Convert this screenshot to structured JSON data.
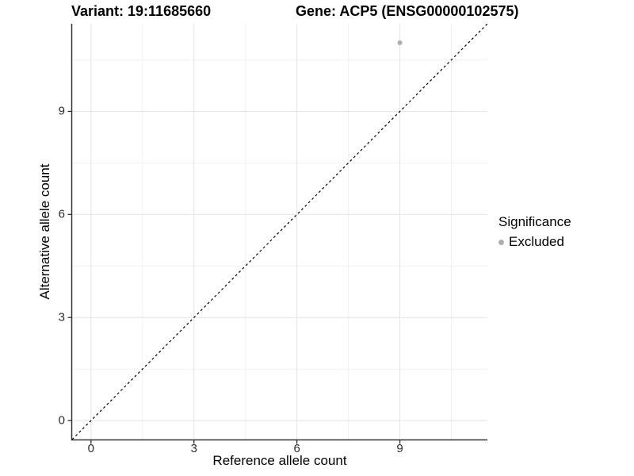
{
  "header": {
    "variant_title": "Variant: 19:11685660",
    "gene_title": "Gene: ACP5 (ENSG00000102575)"
  },
  "axes": {
    "x_label": "Reference allele count",
    "y_label": "Alternative allele count"
  },
  "legend": {
    "title": "Significance",
    "items": [
      {
        "label": "Excluded",
        "color": "#aeaeae"
      }
    ]
  },
  "colors": {
    "grid_major": "#e4e4e4",
    "grid_minor": "#f1f1f1",
    "axis_line": "#333333",
    "tick_mark": "#333333",
    "identity_line": "#000000",
    "point": "#aeaeae",
    "panel_background": "#ffffff"
  },
  "chart_data": {
    "type": "scatter",
    "title": "Variant: 19:11685660    Gene: ACP5 (ENSG00000102575)",
    "xlabel": "Reference allele count",
    "ylabel": "Alternative allele count",
    "xlim": [
      -0.55,
      11.55
    ],
    "ylim": [
      -0.55,
      11.55
    ],
    "xticks": [
      0,
      3,
      6,
      9
    ],
    "yticks": [
      0,
      3,
      6,
      9
    ],
    "x_minor_breaks": [
      1.5,
      4.5,
      7.5,
      10.5
    ],
    "y_minor_breaks": [
      1.5,
      4.5,
      7.5,
      10.5
    ],
    "grid": "on",
    "legend_position": "right",
    "legend_title": "Significance",
    "series": [
      {
        "name": "Excluded",
        "color": "#aeaeae",
        "marker": "circle",
        "point_radius": 3,
        "points": [
          [
            9,
            11
          ]
        ]
      }
    ],
    "identity_line": {
      "style": "dashed",
      "color": "#000000",
      "from": [
        -0.55,
        -0.55
      ],
      "to": [
        11.55,
        11.55
      ]
    }
  }
}
